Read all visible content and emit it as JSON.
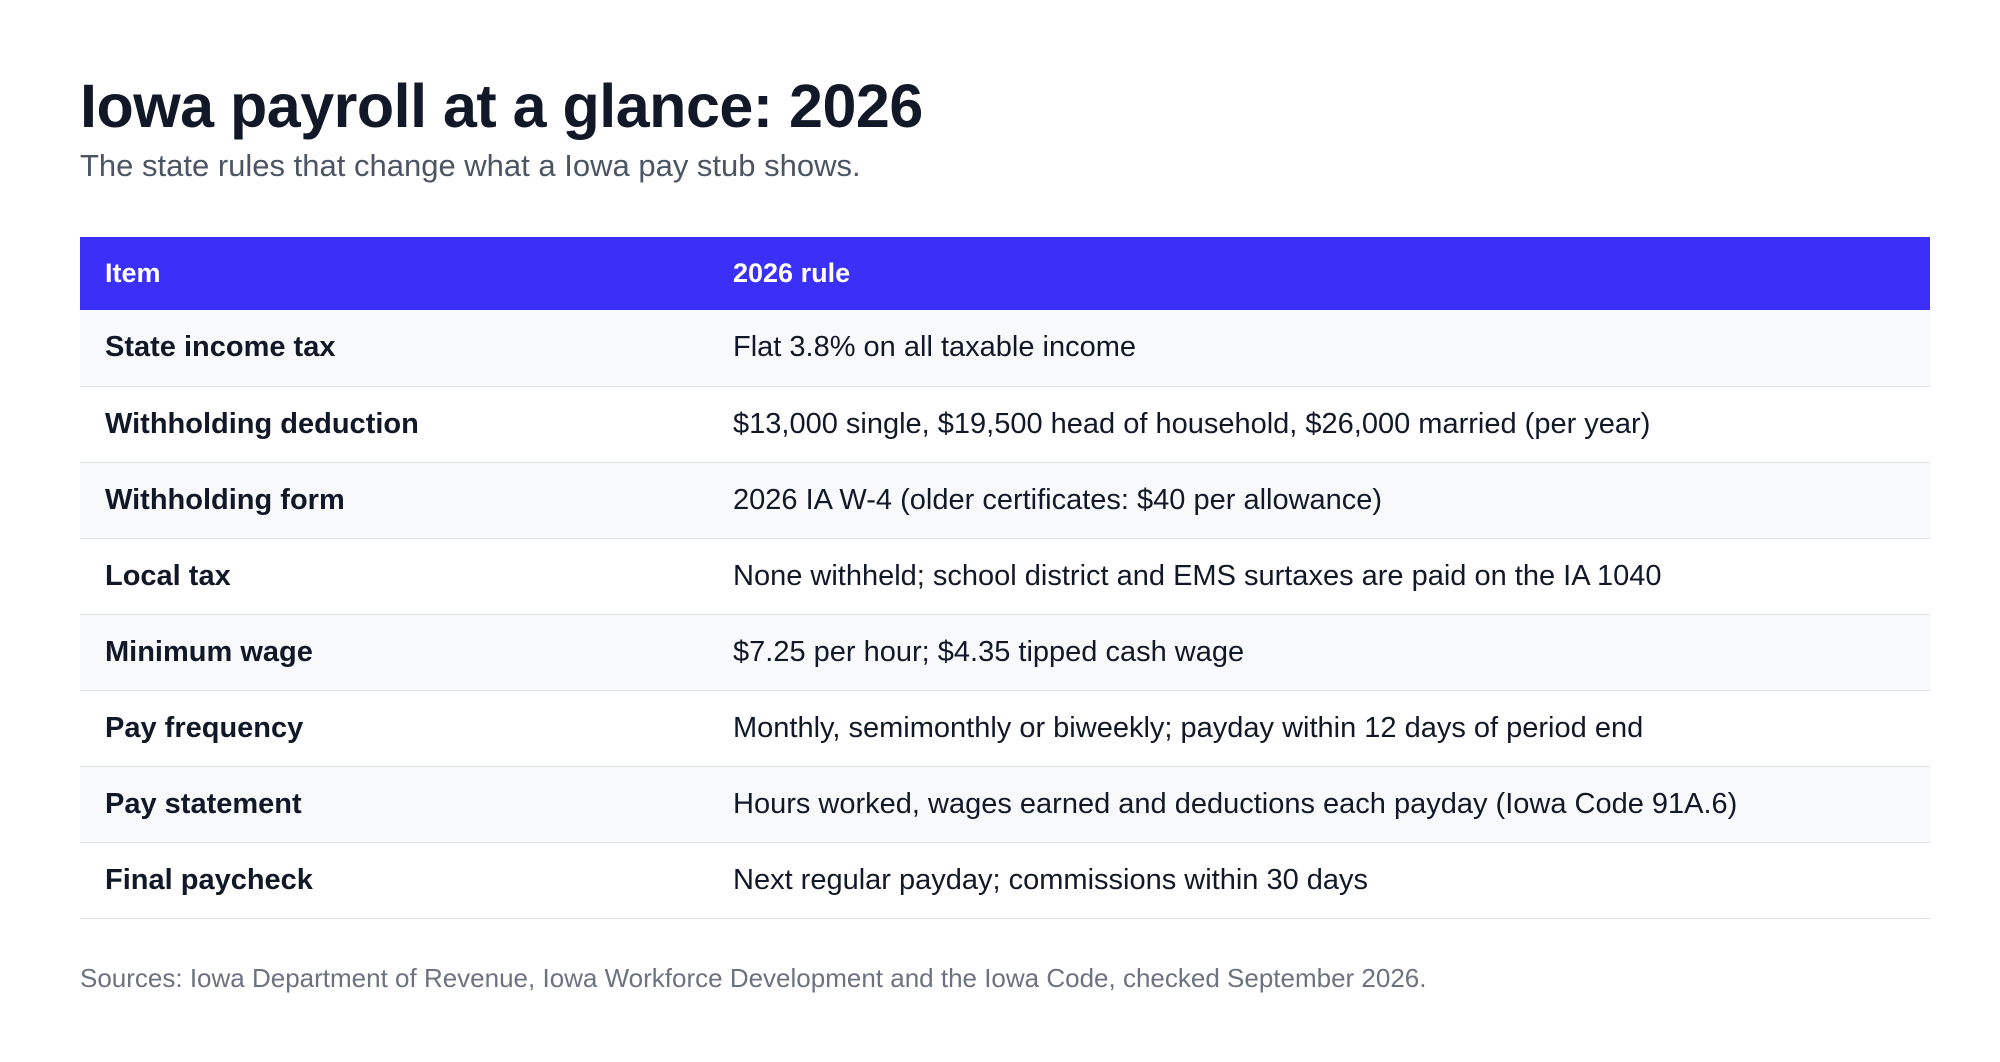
{
  "title": "Iowa payroll at a glance: 2026",
  "subtitle": "The state rules that change what a Iowa pay stub shows.",
  "table": {
    "headers": [
      "Item",
      "2026 rule"
    ],
    "rows": [
      {
        "item": "State income tax",
        "rule": "Flat 3.8% on all taxable income"
      },
      {
        "item": "Withholding deduction",
        "rule": "$13,000 single, $19,500 head of household, $26,000 married (per year)"
      },
      {
        "item": "Withholding form",
        "rule": "2026 IA W-4 (older certificates: $40 per allowance)"
      },
      {
        "item": "Local tax",
        "rule": "None withheld; school district and EMS surtaxes are paid on the IA 1040"
      },
      {
        "item": "Minimum wage",
        "rule": "$7.25 per hour; $4.35 tipped cash wage"
      },
      {
        "item": "Pay frequency",
        "rule": "Monthly, semimonthly or biweekly; payday within 12 days of period end"
      },
      {
        "item": "Pay statement",
        "rule": "Hours worked, wages earned and deductions each payday (Iowa Code 91A.6)"
      },
      {
        "item": "Final paycheck",
        "rule": "Next regular payday; commissions within 30 days"
      }
    ]
  },
  "sources": "Sources: Iowa Department of Revenue, Iowa Workforce Development and the Iowa Code, checked September 2026.",
  "colors": {
    "header_bg": "#3b30f7",
    "header_text": "#ffffff",
    "row_alt_bg": "#f8f9fb",
    "title_text": "#111827",
    "muted_text": "#6b7280"
  }
}
